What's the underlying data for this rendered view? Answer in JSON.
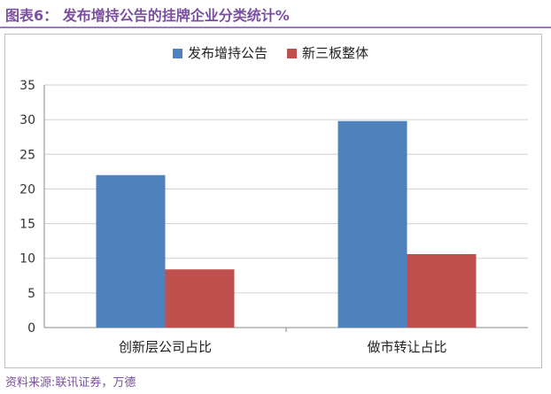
{
  "header": {
    "title": "图表6：  发布增持公告的挂牌企业分类统计%"
  },
  "source": {
    "text": "资料来源:联讯证券，万德"
  },
  "colors": {
    "series_a": "#4f81bd",
    "series_b": "#c0504d"
  },
  "chart_data": {
    "type": "bar",
    "categories": [
      "创新层公司占比",
      "做市转让占比"
    ],
    "series": [
      {
        "name": "发布增持公告",
        "values": [
          22.0,
          29.8
        ],
        "color": "#4f81bd"
      },
      {
        "name": "新三板整体",
        "values": [
          8.4,
          10.6
        ],
        "color": "#c0504d"
      }
    ],
    "yticks": [
      0,
      5,
      10,
      15,
      20,
      25,
      30,
      35
    ],
    "ylim": [
      0,
      35
    ],
    "xlabel": "",
    "ylabel": "",
    "grid": true,
    "legend": "top-center"
  }
}
